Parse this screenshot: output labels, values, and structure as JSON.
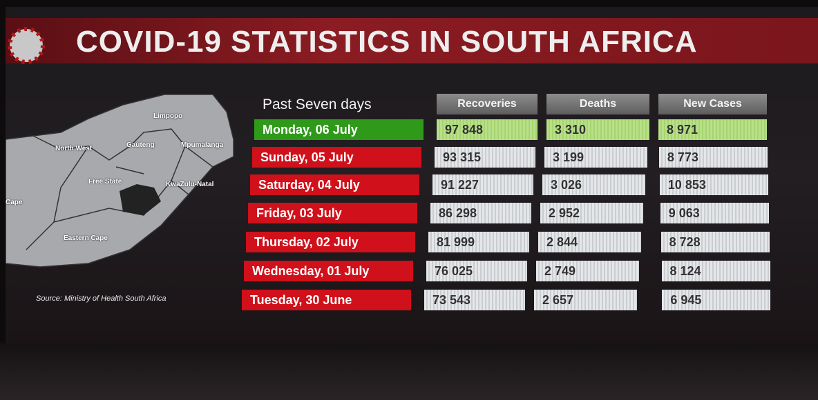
{
  "header": {
    "title": "COVID-19 STATISTICS IN SOUTH AFRICA"
  },
  "map": {
    "labels": [
      "Limpopo",
      "North West",
      "Gauteng",
      "Mpumalanga",
      "Free State",
      "KwaZulu-Natal",
      "Cape",
      "Eastern Cape"
    ],
    "source": "Source: Ministry of Health South Africa"
  },
  "table": {
    "caption": "Past Seven days",
    "columns": [
      "Recoveries",
      "Deaths",
      "New Cases"
    ],
    "rows": [
      {
        "day": "Monday, 06 July",
        "values": [
          "97 848",
          "3 310",
          "8 971"
        ]
      },
      {
        "day": "Sunday, 05 July",
        "values": [
          "93 315",
          "3 199",
          "8 773"
        ]
      },
      {
        "day": "Saturday, 04 July",
        "values": [
          "91 227",
          "3 026",
          "10 853"
        ]
      },
      {
        "day": "Friday, 03 July",
        "values": [
          "86 298",
          "2 952",
          "9 063"
        ]
      },
      {
        "day": "Thursday, 02 July",
        "values": [
          "81 999",
          "2 844",
          "8 728"
        ]
      },
      {
        "day": "Wednesday, 01 July",
        "values": [
          "76 025",
          "2 749",
          "8 124"
        ]
      },
      {
        "day": "Tuesday, 30 June",
        "values": [
          "73 543",
          "2 657",
          "6 945"
        ]
      }
    ]
  }
}
